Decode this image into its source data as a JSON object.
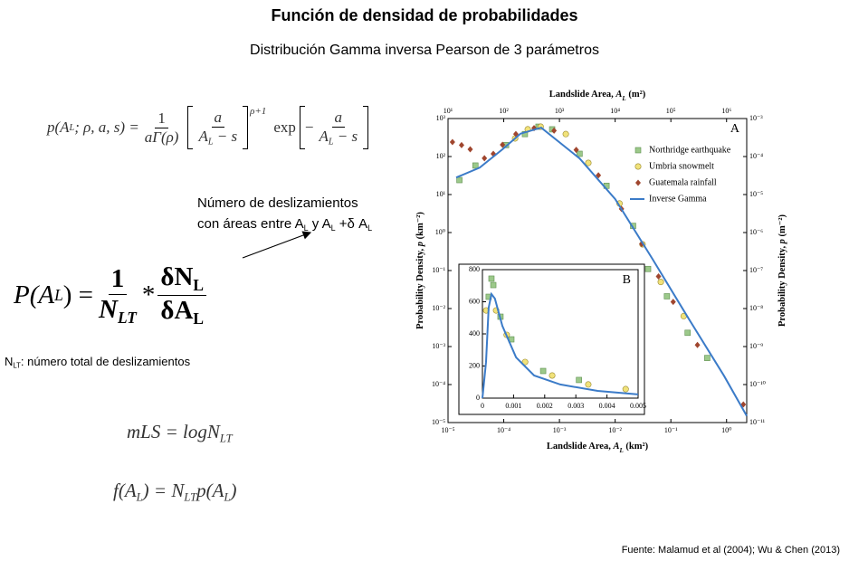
{
  "header": {
    "title": "Función de densidad de probabilidades",
    "subtitle": "Distribución Gamma inversa Pearson de 3 parámetros"
  },
  "formulas": [
    {
      "lhs": "p(A",
      "lhs_sub": "L",
      "lhs_rest": "; ρ, a, s) =",
      "num1": "1",
      "den1": "aΓ(ρ)",
      "num2": "a",
      "den2": "A",
      "den2_sub": "L",
      "den2_rest": " − s",
      "power": "ρ+1",
      "exp": "exp",
      "minus": "−",
      "num3": "a",
      "den3": "A",
      "den3_sub": "L",
      "den3_rest": " − s"
    },
    {
      "lhs": "P(A",
      "lhs_sub": "L",
      "lhs_rest": ") =",
      "num1": "1",
      "den1": "N",
      "den1_sub": "LT",
      "times": "*",
      "num2": "δN",
      "num2_sub": "L",
      "den2": "δA",
      "den2_sub": "L"
    },
    {
      "text": "mLS = logN",
      "sub": "LT"
    },
    {
      "text": "f(A",
      "sub1": "L",
      "mid": ") = N",
      "sub2": "LT",
      "mid2": "p(A",
      "sub3": "L",
      "end": ")"
    }
  ],
  "annotation": {
    "line1": "Número de deslizamientos",
    "line2": "con áreas entre A",
    "sub1": "L",
    "mid": " y A",
    "sub2": "L",
    "rest": " +δ A",
    "sub3": "L"
  },
  "note": {
    "n": "N",
    "sub": "LT",
    "text": ": número total de deslizamientos"
  },
  "chart_data": [
    {
      "type": "scatter",
      "panel_label": "A",
      "log_scale": {
        "x": true,
        "y": true,
        "x2": true,
        "y2": true
      },
      "x_label": {
        "text": "Landslide Area, ",
        "var": "A",
        "sub": "L",
        "unit": " (km²)"
      },
      "x2_label": {
        "text": "Landslide Area, ",
        "var": "A",
        "sub": "L",
        "unit": " (m²)"
      },
      "y_label": {
        "text": "Probability Density, ",
        "var": "p",
        "unit": " (km⁻²)"
      },
      "y2_label": {
        "text": "Probability Density, ",
        "var": "p",
        "unit": " (m⁻²)"
      },
      "xlim": [
        1e-05,
        2.3
      ],
      "xticks": [
        {
          "value": 1e-05,
          "label": "10⁻⁵"
        },
        {
          "value": 0.0001,
          "label": "10⁻⁴"
        },
        {
          "value": 0.001,
          "label": "10⁻³"
        },
        {
          "value": 0.01,
          "label": "10⁻²"
        },
        {
          "value": 0.1,
          "label": "10⁻¹"
        },
        {
          "value": 1,
          "label": "10⁰"
        }
      ],
      "x2lim": [
        10,
        2300000
      ],
      "x2ticks": [
        {
          "value": 10,
          "label": "10¹"
        },
        {
          "value": 100,
          "label": "10²"
        },
        {
          "value": 1000,
          "label": "10³"
        },
        {
          "value": 10000,
          "label": "10⁴"
        },
        {
          "value": 100000,
          "label": "10⁵"
        },
        {
          "value": 1000000,
          "label": "10⁶"
        }
      ],
      "ylim": [
        1e-05,
        1000
      ],
      "yticks": [
        {
          "value": 1000,
          "label": "10³"
        },
        {
          "value": 100,
          "label": "10²"
        },
        {
          "value": 10,
          "label": "10¹"
        },
        {
          "value": 1,
          "label": "10⁰"
        },
        {
          "value": 0.1,
          "label": "10⁻¹"
        },
        {
          "value": 0.01,
          "label": "10⁻²"
        },
        {
          "value": 0.001,
          "label": "10⁻³"
        },
        {
          "value": 0.0001,
          "label": "10⁻⁴"
        },
        {
          "value": 1e-05,
          "label": "10⁻⁵"
        }
      ],
      "y2lim": [
        1e-11,
        0.001
      ],
      "y2ticks": [
        {
          "value": 0.001,
          "label": "10⁻³"
        },
        {
          "value": 0.0001,
          "label": "10⁻⁴"
        },
        {
          "value": 1e-05,
          "label": "10⁻⁵"
        },
        {
          "value": 1e-06,
          "label": "10⁻⁶"
        },
        {
          "value": 1e-07,
          "label": "10⁻⁷"
        },
        {
          "value": 1e-08,
          "label": "10⁻⁸"
        },
        {
          "value": 1e-09,
          "label": "10⁻⁹"
        },
        {
          "value": 1e-10,
          "label": "10⁻¹⁰"
        },
        {
          "value": 1e-11,
          "label": "10⁻¹¹"
        }
      ],
      "legend": "upper right",
      "series": [
        {
          "name": "Northridge earthquake",
          "marker": "square",
          "color": "#9cc98a",
          "x": [
            1.6e-05,
            3.1e-05,
            0.00011,
            0.00024,
            0.00042,
            0.00074,
            0.0023,
            0.007,
            0.021,
            0.039,
            0.085,
            0.2,
            0.45
          ],
          "values": [
            24,
            58,
            200,
            390,
            610,
            520,
            118,
            17,
            1.5,
            0.11,
            0.021,
            0.0023,
            0.0005
          ]
        },
        {
          "name": "Umbria snowmelt",
          "marker": "circle",
          "color": "#f1e27a",
          "x": [
            0.00016,
            0.00027,
            0.00046,
            0.0013,
            0.0033,
            0.012,
            0.031,
            0.066,
            0.17
          ],
          "values": [
            300,
            520,
            610,
            390,
            68,
            5.8,
            0.49,
            0.05,
            0.0063
          ]
        },
        {
          "name": "Guatemala rainfall",
          "marker": "diamond",
          "color": "#a0462e",
          "x": [
            1.2e-05,
            1.75e-05,
            2.5e-05,
            4.5e-05,
            6.5e-05,
            9.5e-05,
            0.000165,
            0.00035,
            0.0008,
            0.002,
            0.005,
            0.013,
            0.03,
            0.06,
            0.11,
            0.3,
            2.0
          ],
          "values": [
            240,
            200,
            155,
            90,
            118,
            204,
            390,
            560,
            480,
            150,
            32,
            4.2,
            0.5,
            0.07,
            0.015,
            0.0011,
            3e-05
          ]
        },
        {
          "name": "Inverse Gamma",
          "marker": "line",
          "color": "#3b7bc8",
          "x": [
            1.4e-05,
            3.7e-05,
            9.5e-05,
            0.0002,
            0.00047,
            0.0023,
            0.01,
            0.046,
            0.2,
            0.9,
            2.3
          ],
          "values": [
            28,
            51,
            155,
            400,
            575,
            89,
            7.6,
            0.21,
            0.006,
            0.00017,
            1.5e-05
          ]
        }
      ]
    },
    {
      "type": "scatter",
      "panel_label": "B",
      "xlim": [
        0,
        0.005
      ],
      "xticks": [
        0,
        0.001,
        0.002,
        0.003,
        0.004,
        0.005
      ],
      "ylim": [
        0,
        800
      ],
      "yticks": [
        0,
        200,
        400,
        600,
        800
      ],
      "series": [
        {
          "marker": "square",
          "color": "#9cc98a",
          "x": [
            0.00029,
            0.00035,
            0.0002,
            0.00058,
            0.00093,
            0.00195,
            0.0031
          ],
          "values": [
            744,
            704,
            631,
            507,
            366,
            169,
            113
          ]
        },
        {
          "marker": "circle",
          "color": "#f1e27a",
          "x": [
            0.00012,
            0.00044,
            0.00078,
            0.00137,
            0.00224,
            0.0034,
            0.0046
          ],
          "values": [
            546,
            546,
            394,
            225,
            141,
            85,
            56
          ]
        },
        {
          "marker": "line",
          "color": "#3b7bc8",
          "x": [
            0,
            0.000116,
            0.0002,
            0.00029,
            0.0004,
            0.00064,
            0.00108,
            0.00166,
            0.0025,
            0.0037,
            0.005
          ],
          "values": [
            0,
            225,
            563,
            648,
            620,
            450,
            254,
            141,
            85,
            45,
            23
          ]
        }
      ]
    }
  ],
  "footer": "Fuente: Malamud et al (2004); Wu & Chen (2013)"
}
